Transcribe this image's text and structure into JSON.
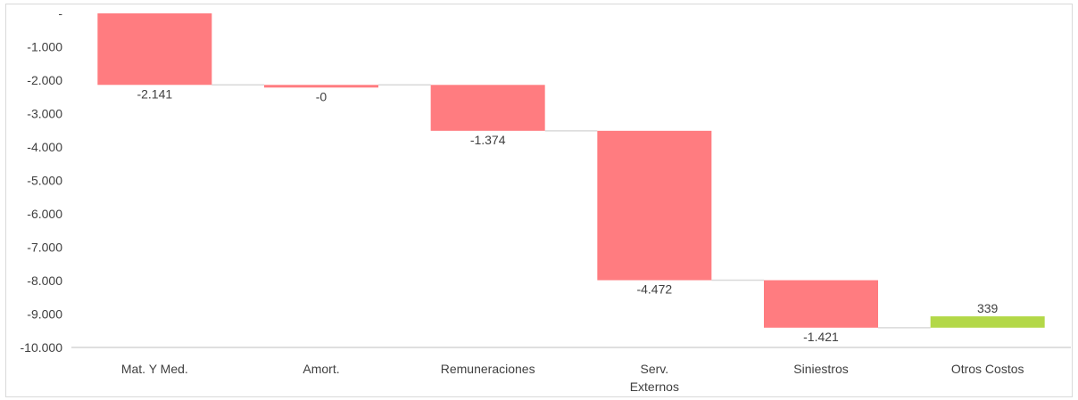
{
  "chart_data": {
    "type": "waterfall",
    "title": "",
    "xlabel": "",
    "ylabel": "",
    "ylim": [
      -10000,
      0
    ],
    "ytick_labels": [
      "-",
      "-1.000",
      "-2.000",
      "-3.000",
      "-4.000",
      "-5.000",
      "-6.000",
      "-7.000",
      "-8.000",
      "-9.000",
      "-10.000"
    ],
    "categories": [
      [
        "Mat. Y Med."
      ],
      [
        "Amort."
      ],
      [
        "Remuneraciones"
      ],
      [
        "Serv.",
        "Externos"
      ],
      [
        "Siniestros"
      ],
      [
        "Otros Costos"
      ]
    ],
    "values": [
      -2141,
      -0.4,
      -1374,
      -4472,
      -1421,
      339
    ],
    "data_labels": [
      "-2.141",
      "-0",
      "-1.374",
      "-4.472",
      "-1.421",
      "339"
    ],
    "grid": false,
    "colors": {
      "decrease": "#ff7c80",
      "increase": "#b3d848",
      "connector": "#d9d9d9",
      "axis": "#bfbfbf"
    }
  }
}
